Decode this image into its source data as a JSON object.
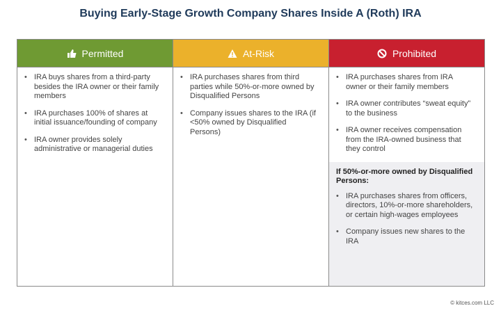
{
  "title": "Buying Early-Stage Growth Company Shares Inside A (Roth) IRA",
  "columns": [
    {
      "label": "Permitted",
      "icon": "thumbs-up-icon",
      "color": "#6f9a33",
      "items": [
        "IRA buys shares from a third-party besides the IRA owner or their family members",
        "IRA purchases 100% of shares at initial issuance/founding of company",
        "IRA owner provides solely administrative or managerial duties"
      ]
    },
    {
      "label": "At-Risk",
      "icon": "warning-icon",
      "color": "#ebb12b",
      "items": [
        "IRA purchases shares from third parties while 50%-or-more owned by Disqualified Persons",
        "Company issues shares to the IRA (if <50% owned by Disqualified Persons)"
      ]
    },
    {
      "label": "Prohibited",
      "icon": "prohibited-icon",
      "color": "#c8202f",
      "items": [
        "IRA purchases shares from IRA owner or their family members",
        "IRA owner contributes “sweat equity” to the business",
        "IRA owner receives compensation from the IRA-owned business that they control"
      ],
      "subsection": {
        "title": "If 50%-or-more owned by Disqualified Persons:",
        "items": [
          "IRA purchases shares from officers, directors, 10%-or-more shareholders, or certain high-wages employees",
          "Company issues new shares to the IRA"
        ]
      }
    }
  ],
  "copyright": "© kitces.com LLC"
}
